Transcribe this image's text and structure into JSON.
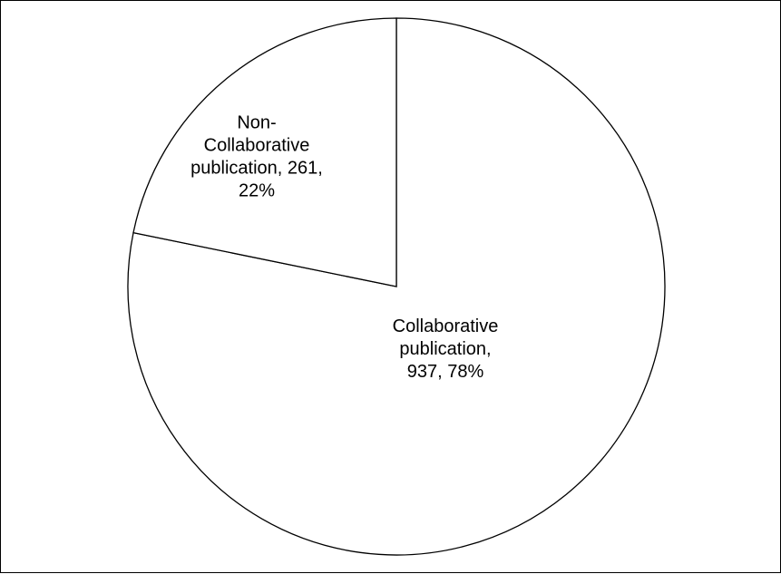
{
  "chart_data": {
    "type": "pie",
    "title": "",
    "start_angle_deg": 0,
    "direction": "clockwise",
    "slices": [
      {
        "name": "Collaborative publication",
        "value": 937,
        "percent": 78,
        "label_lines": [
          "Collaborative",
          "publication,",
          "937, 78%"
        ]
      },
      {
        "name": "Non-Collaborative publication",
        "value": 261,
        "percent": 22,
        "label_lines": [
          "Non-",
          "Collaborative",
          "publication, 261,",
          "22%"
        ]
      }
    ],
    "legend": "none",
    "colors": {
      "fill": "#ffffff",
      "stroke": "#000000",
      "text": "#000000"
    }
  }
}
